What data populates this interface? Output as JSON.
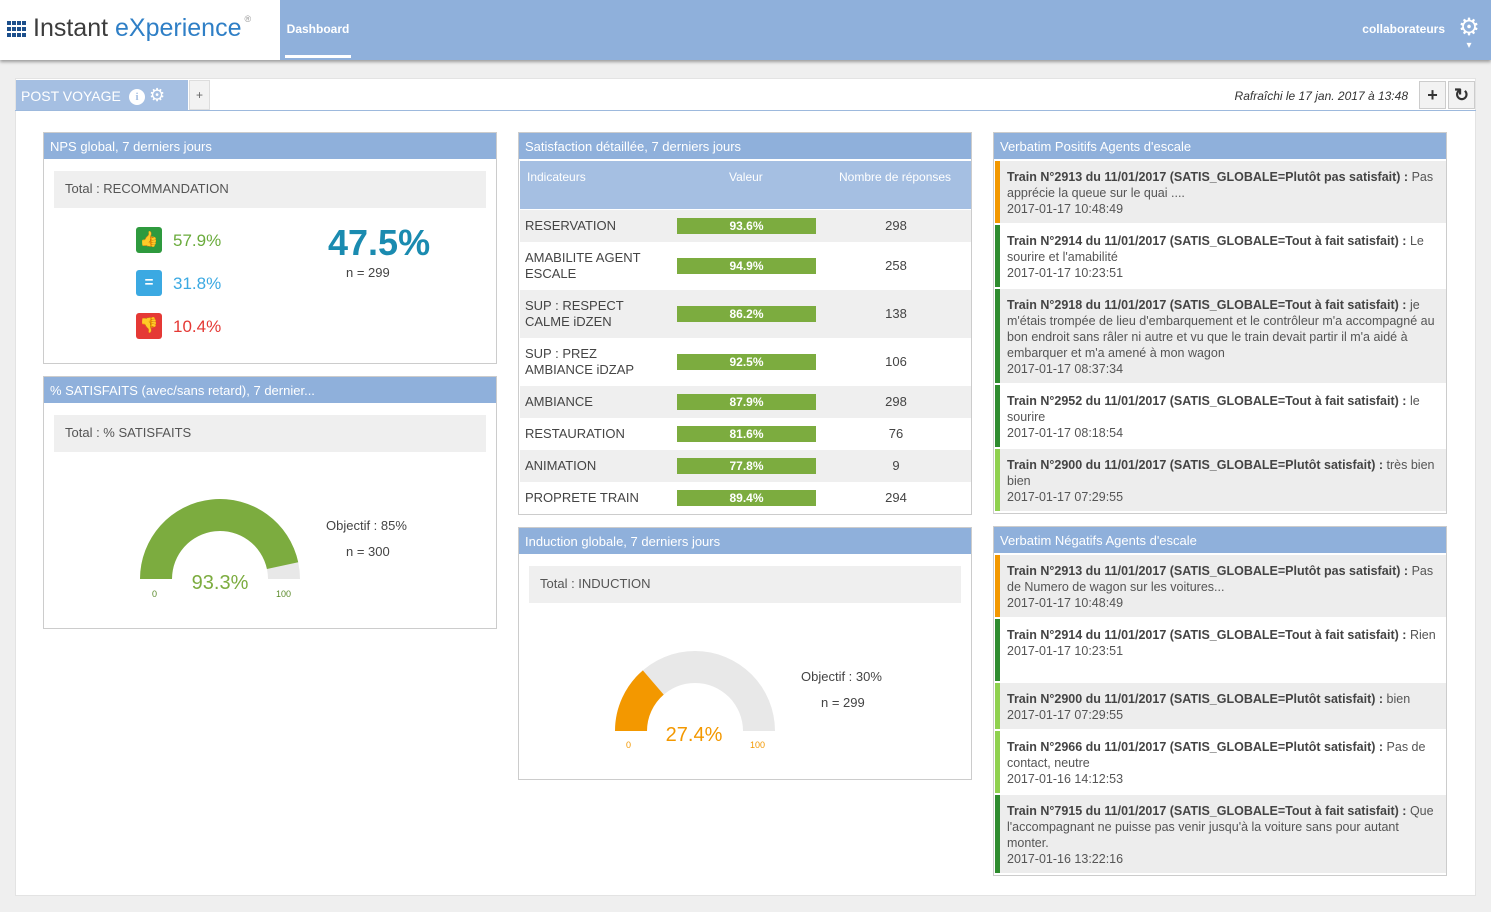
{
  "brand": {
    "name_part1": "Instant ",
    "name_part2": "eXperience",
    "reg": "®"
  },
  "nav": {
    "tab": "Dashboard"
  },
  "user": {
    "label": "collaborateurs",
    "gear_icon": "gear-icon"
  },
  "tabs": {
    "active": "POST VOYAGE",
    "add": "+"
  },
  "refresh": {
    "text": "Rafraîchi le 17 jan. 2017 à 13:48",
    "add": "+",
    "reload": "↻"
  },
  "nps": {
    "title": "NPS global, 7 derniers jours",
    "total": "Total : RECOMMANDATION",
    "promoters": "57.9%",
    "neutral": "31.8%",
    "detractors": "10.4%",
    "score": "47.5%",
    "n": "n = 299",
    "colors": {
      "promoters": "#5cb85c",
      "neutral": "#3ba9e2",
      "detractors": "#e53935"
    }
  },
  "satisfaits": {
    "title": "% SATISFAITS (avec/sans retard), 7 dernier...",
    "total": "Total : % SATISFAITS",
    "value": "93.3%",
    "fill": 0.933,
    "min": "0",
    "max": "100",
    "objectif": "Objectif : 85%",
    "n": "n = 300",
    "color": "#7cac3f"
  },
  "detail": {
    "title": "Satisfaction détaillée, 7 derniers jours",
    "headers": {
      "ind": "Indicateurs",
      "val": "Valeur",
      "nb": "Nombre de réponses"
    },
    "rows": [
      {
        "label": "RESERVATION",
        "value": "93.6%",
        "count": "298"
      },
      {
        "label": "AMABILITE AGENT ESCALE",
        "value": "94.9%",
        "count": "258"
      },
      {
        "label": "SUP : RESPECT CALME iDZEN",
        "value": "86.2%",
        "count": "138"
      },
      {
        "label": "SUP : PREZ AMBIANCE iDZAP",
        "value": "92.5%",
        "count": "106"
      },
      {
        "label": "AMBIANCE",
        "value": "87.9%",
        "count": "298"
      },
      {
        "label": "RESTAURATION",
        "value": "81.6%",
        "count": "76"
      },
      {
        "label": "ANIMATION",
        "value": "77.8%",
        "count": "9"
      },
      {
        "label": "PROPRETE TRAIN",
        "value": "89.4%",
        "count": "294"
      }
    ]
  },
  "induction": {
    "title": "Induction globale, 7 derniers jours",
    "total": "Total : INDUCTION",
    "value": "27.4%",
    "fill": 0.274,
    "min": "0",
    "max": "100",
    "objectif": "Objectif : 30%",
    "n": "n = 299",
    "color": "#f39800"
  },
  "verbatim_pos": {
    "title": "Verbatim Positifs Agents d'escale",
    "items": [
      {
        "head": "Train N°2913 du 11/01/2017 (SATIS_GLOBALE=Plutôt pas satisfait) :",
        "text": "Pas apprécie la queue sur le quai ....",
        "date": "2017-01-17 10:48:49",
        "color": "#f39800"
      },
      {
        "head": "Train N°2914 du 11/01/2017 (SATIS_GLOBALE=Tout à fait satisfait) :",
        "text": "Le sourire et l'amabilité",
        "date": "2017-01-17 10:23:51",
        "color": "#2e8b2e"
      },
      {
        "head": "Train N°2918 du 11/01/2017 (SATIS_GLOBALE=Tout à fait satisfait) :",
        "text": "je m'étais trompée de lieu d'embarquement et le contrôleur m'a accompagné au bon endroit sans râler ni autre et vu que le train devait partir il m'a aidé à embarquer et m'a amené à mon wagon",
        "date": "2017-01-17 08:37:34",
        "color": "#2e8b2e"
      },
      {
        "head": "Train N°2952 du 11/01/2017 (SATIS_GLOBALE=Tout à fait satisfait) :",
        "text": "le sourire",
        "date": "2017-01-17 08:18:54",
        "color": "#2e8b2e"
      },
      {
        "head": "Train N°2900 du 11/01/2017 (SATIS_GLOBALE=Plutôt satisfait) :",
        "text": "très bien bien",
        "date": "2017-01-17 07:29:55",
        "color": "#8fd14f"
      }
    ]
  },
  "verbatim_neg": {
    "title": "Verbatim Négatifs Agents d'escale",
    "items": [
      {
        "head": "Train N°2913 du 11/01/2017 (SATIS_GLOBALE=Plutôt pas satisfait) :",
        "text": "Pas de Numero de wagon sur les voitures...",
        "date": "2017-01-17 10:48:49",
        "color": "#f39800"
      },
      {
        "head": "Train N°2914 du 11/01/2017 (SATIS_GLOBALE=Tout à fait satisfait) :",
        "text": "Rien",
        "date": "2017-01-17 10:23:51",
        "color": "#2e8b2e"
      },
      {
        "head": "Train N°2900 du 11/01/2017 (SATIS_GLOBALE=Plutôt satisfait) :",
        "text": "bien",
        "date": "2017-01-17 07:29:55",
        "color": "#8fd14f"
      },
      {
        "head": "Train N°2966 du 11/01/2017 (SATIS_GLOBALE=Plutôt satisfait) :",
        "text": "Pas de contact, neutre",
        "date": "2017-01-16 14:12:53",
        "color": "#8fd14f"
      },
      {
        "head": "Train N°7915 du 11/01/2017 (SATIS_GLOBALE=Tout à fait satisfait) :",
        "text": "Que l'accompagnant ne puisse pas venir jusqu'à la voiture sans pour autant monter.",
        "date": "2017-01-16 13:22:16",
        "color": "#2e8b2e"
      }
    ]
  }
}
